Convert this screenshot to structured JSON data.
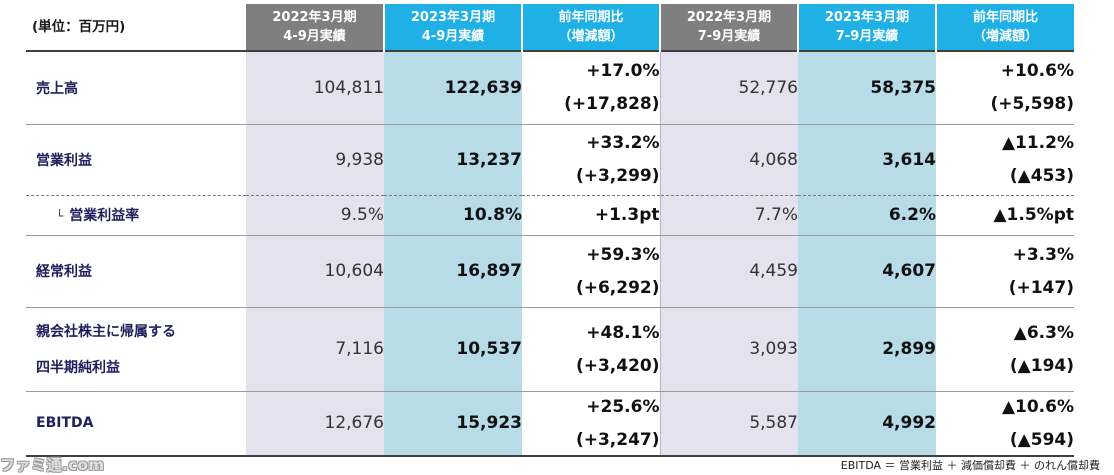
{
  "header": {
    "unit": "(単位：百万円)",
    "columns": [
      {
        "line1": "2022年3月期",
        "line2": "4-9月実績"
      },
      {
        "line1": "2023年3月期",
        "line2": "4-9月実績"
      },
      {
        "line1": "前年同期比",
        "line2": "（増減額）"
      },
      {
        "line1": "2022年3月期",
        "line2": "7-9月実績"
      },
      {
        "line1": "2023年3月期",
        "line2": "7-9月実績"
      },
      {
        "line1": "前年同期比",
        "line2": "（増減額）"
      }
    ]
  },
  "rows": [
    {
      "label": "売上高",
      "h1_prev": "104,811",
      "h1_curr": "122,639",
      "h1_pct": "+17.0%",
      "h1_diff": "(+17,828)",
      "q_prev": "52,776",
      "q_curr": "58,375",
      "q_pct": "+10.6%",
      "q_diff": "(+5,598)"
    },
    {
      "label": "営業利益",
      "h1_prev": "9,938",
      "h1_curr": "13,237",
      "h1_pct": "+33.2%",
      "h1_diff": "(+3,299)",
      "q_prev": "4,068",
      "q_curr": "3,614",
      "q_pct": "▲11.2%",
      "q_diff": "(▲453)"
    },
    {
      "mark": "└",
      "label": "営業利益率",
      "h1_prev": "9.5%",
      "h1_curr": "10.8%",
      "h1_pct": "+1.3pt",
      "q_prev": "7.7%",
      "q_curr": "6.2%",
      "q_pct": "▲1.5%pt"
    },
    {
      "label": "経常利益",
      "h1_prev": "10,604",
      "h1_curr": "16,897",
      "h1_pct": "+59.3%",
      "h1_diff": "(+6,292)",
      "q_prev": "4,459",
      "q_curr": "4,607",
      "q_pct": "+3.3%",
      "q_diff": "(+147)"
    },
    {
      "label": "親会社株主に帰属する",
      "label2": "四半期純利益",
      "h1_prev": "7,116",
      "h1_curr": "10,537",
      "h1_pct": "+48.1%",
      "h1_diff": "(+3,420)",
      "q_prev": "3,093",
      "q_curr": "2,899",
      "q_pct": "▲6.3%",
      "q_diff": "(▲194)"
    },
    {
      "label": "EBITDA",
      "h1_prev": "12,676",
      "h1_curr": "15,923",
      "h1_pct": "+25.6%",
      "h1_diff": "(+3,247)",
      "q_prev": "5,587",
      "q_curr": "4,992",
      "q_pct": "▲10.6%",
      "q_diff": "(▲594)"
    }
  ],
  "footnote": "EBITDA ＝ 営業利益 ＋ 減価償却費 ＋ のれん償却費",
  "watermark": "ファミ通.com"
}
